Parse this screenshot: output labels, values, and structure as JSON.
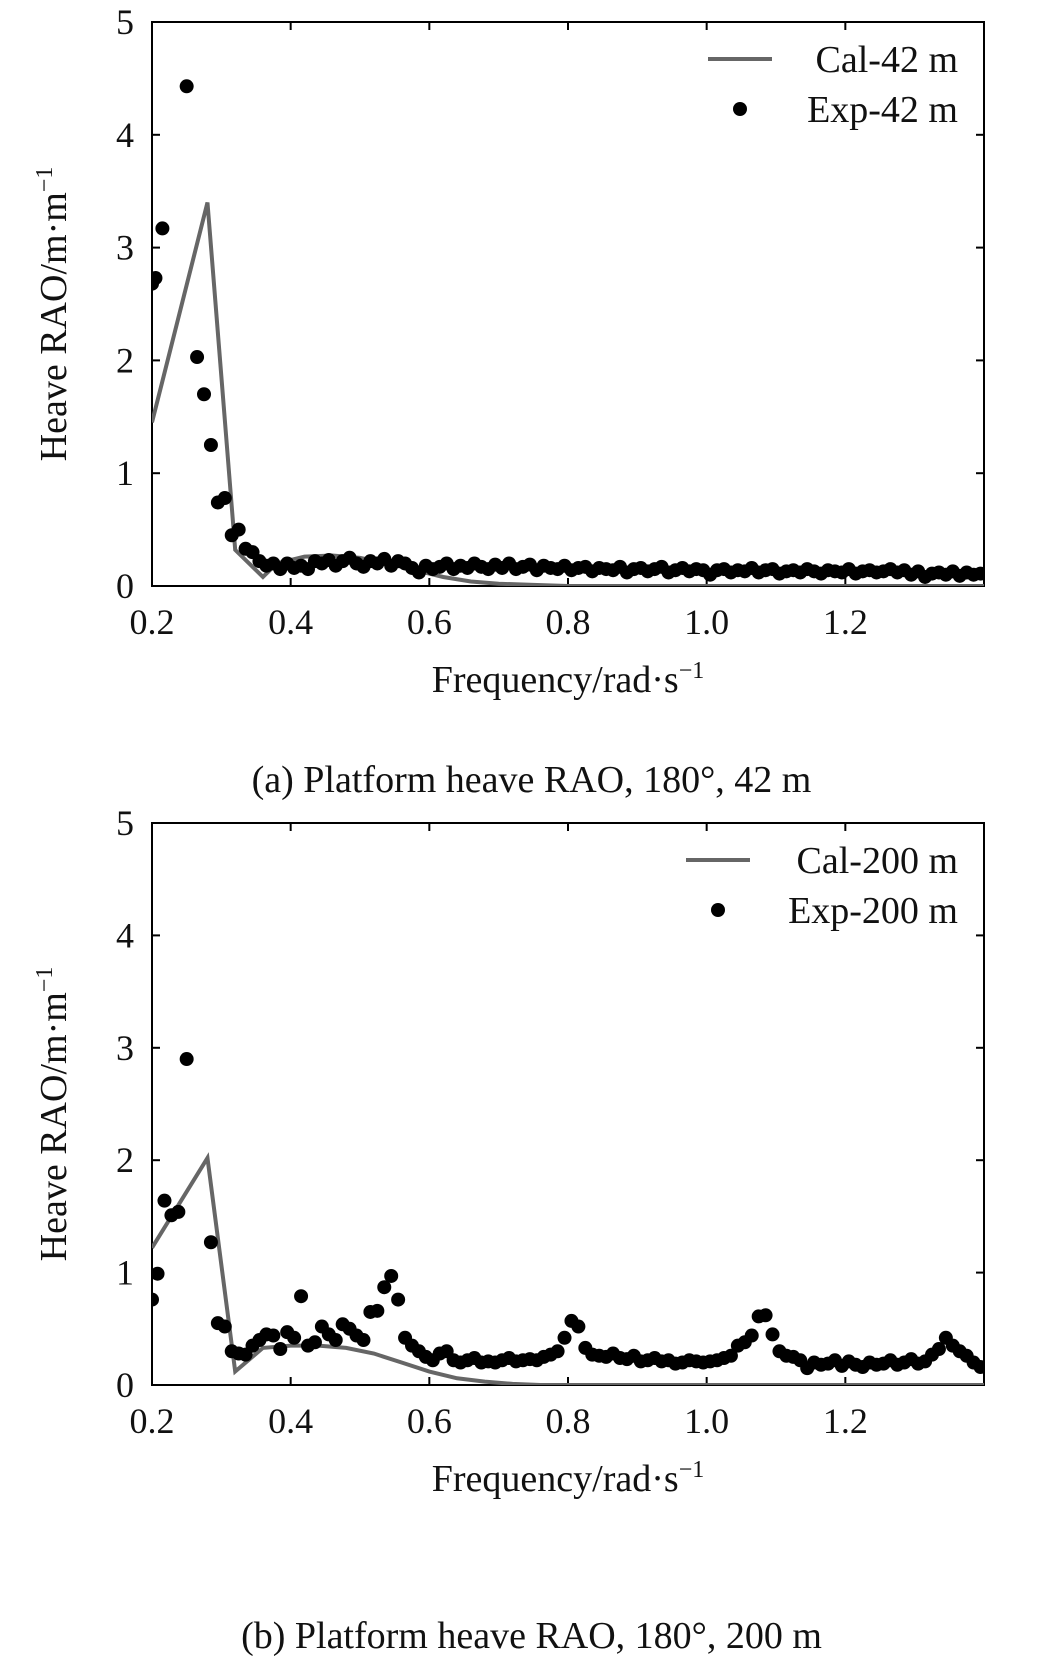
{
  "chart_data": [
    {
      "type": "line+scatter",
      "caption": "(a) Platform heave RAO, 180°, 42 m",
      "xlabel": "Frequency/rad·s",
      "xlabel_sup": "−1",
      "ylabel": "Heave RAO/m·m",
      "ylabel_sup": "−1",
      "xlim": [
        0.2,
        1.4
      ],
      "ylim": [
        0,
        5
      ],
      "xticks": [
        0.2,
        0.4,
        0.6,
        0.8,
        1.0,
        1.2
      ],
      "xtick_labels": [
        "0.2",
        "0.4",
        "0.6",
        "0.8",
        "1.0",
        "1.2"
      ],
      "yticks": [
        0,
        1,
        2,
        3,
        4,
        5
      ],
      "ytick_labels": [
        "0",
        "1",
        "2",
        "3",
        "4",
        "5"
      ],
      "legend_position": "top-right",
      "series": [
        {
          "name": "Cal-42 m",
          "kind": "line",
          "color": "#666666",
          "x": [
            0.2,
            0.28,
            0.32,
            0.36,
            0.38,
            0.42,
            0.46,
            0.5,
            0.54,
            0.58,
            0.62,
            0.66,
            0.7,
            0.75,
            0.8,
            0.9,
            1.0,
            1.2,
            1.4
          ],
          "y": [
            1.45,
            3.4,
            0.32,
            0.08,
            0.2,
            0.26,
            0.27,
            0.25,
            0.2,
            0.14,
            0.08,
            0.04,
            0.02,
            0.01,
            0.0,
            0.0,
            0.0,
            0.0,
            0.0
          ]
        },
        {
          "name": "Exp-42 m",
          "kind": "scatter",
          "color": "#000000",
          "x": [
            0.2,
            0.205,
            0.215,
            0.25,
            0.265,
            0.275,
            0.285,
            0.295,
            0.305,
            0.315,
            0.325,
            0.335,
            0.345,
            0.355,
            0.365,
            0.375,
            0.385,
            0.395,
            0.405,
            0.415,
            0.425,
            0.435,
            0.445,
            0.455,
            0.465,
            0.475,
            0.485,
            0.495,
            0.505,
            0.515,
            0.525,
            0.535,
            0.545,
            0.555,
            0.565,
            0.575,
            0.585,
            0.595,
            0.605,
            0.615,
            0.625,
            0.635,
            0.645,
            0.655,
            0.665,
            0.675,
            0.685,
            0.695,
            0.705,
            0.715,
            0.725,
            0.735,
            0.745,
            0.755,
            0.765,
            0.775,
            0.785,
            0.795,
            0.805,
            0.815,
            0.825,
            0.835,
            0.845,
            0.855,
            0.865,
            0.875,
            0.885,
            0.895,
            0.905,
            0.915,
            0.925,
            0.935,
            0.945,
            0.955,
            0.965,
            0.975,
            0.985,
            0.995,
            1.005,
            1.015,
            1.025,
            1.035,
            1.045,
            1.055,
            1.065,
            1.075,
            1.085,
            1.095,
            1.105,
            1.115,
            1.125,
            1.135,
            1.145,
            1.155,
            1.165,
            1.175,
            1.185,
            1.195,
            1.205,
            1.215,
            1.225,
            1.235,
            1.245,
            1.255,
            1.265,
            1.275,
            1.285,
            1.295,
            1.305,
            1.315,
            1.325,
            1.335,
            1.345,
            1.355,
            1.365,
            1.375,
            1.385,
            1.395
          ],
          "y": [
            2.68,
            2.73,
            3.17,
            4.43,
            2.03,
            1.7,
            1.25,
            0.74,
            0.78,
            0.45,
            0.5,
            0.33,
            0.3,
            0.22,
            0.18,
            0.2,
            0.15,
            0.2,
            0.16,
            0.18,
            0.15,
            0.22,
            0.2,
            0.23,
            0.18,
            0.22,
            0.25,
            0.2,
            0.17,
            0.22,
            0.2,
            0.24,
            0.18,
            0.22,
            0.2,
            0.16,
            0.12,
            0.18,
            0.15,
            0.17,
            0.2,
            0.15,
            0.18,
            0.16,
            0.2,
            0.17,
            0.15,
            0.19,
            0.16,
            0.2,
            0.15,
            0.17,
            0.19,
            0.14,
            0.18,
            0.16,
            0.15,
            0.18,
            0.14,
            0.16,
            0.17,
            0.13,
            0.16,
            0.15,
            0.14,
            0.17,
            0.12,
            0.15,
            0.16,
            0.13,
            0.15,
            0.17,
            0.12,
            0.14,
            0.16,
            0.13,
            0.15,
            0.14,
            0.1,
            0.14,
            0.15,
            0.12,
            0.14,
            0.13,
            0.16,
            0.12,
            0.14,
            0.15,
            0.11,
            0.13,
            0.14,
            0.12,
            0.15,
            0.13,
            0.11,
            0.14,
            0.13,
            0.12,
            0.15,
            0.11,
            0.13,
            0.14,
            0.12,
            0.13,
            0.15,
            0.12,
            0.14,
            0.1,
            0.13,
            0.08,
            0.11,
            0.12,
            0.1,
            0.13,
            0.09,
            0.12,
            0.1,
            0.11
          ]
        }
      ]
    },
    {
      "type": "line+scatter",
      "caption": "(b) Platform heave RAO, 180°, 200 m",
      "xlabel": "Frequency/rad·s",
      "xlabel_sup": "−1",
      "ylabel": "Heave RAO/m·m",
      "ylabel_sup": "−1",
      "xlim": [
        0.2,
        1.4
      ],
      "ylim": [
        0,
        5
      ],
      "xticks": [
        0.2,
        0.4,
        0.6,
        0.8,
        1.0,
        1.2
      ],
      "xtick_labels": [
        "0.2",
        "0.4",
        "0.6",
        "0.8",
        "1.0",
        "1.2"
      ],
      "yticks": [
        0,
        1,
        2,
        3,
        4,
        5
      ],
      "ytick_labels": [
        "0",
        "1",
        "2",
        "3",
        "4",
        "5"
      ],
      "legend_position": "top-right",
      "series": [
        {
          "name": "Cal-200 m",
          "kind": "line",
          "color": "#666666",
          "x": [
            0.2,
            0.28,
            0.32,
            0.36,
            0.4,
            0.44,
            0.48,
            0.52,
            0.56,
            0.6,
            0.64,
            0.68,
            0.72,
            0.76,
            0.8,
            0.9,
            1.0,
            1.2,
            1.4
          ],
          "y": [
            1.22,
            2.02,
            0.12,
            0.33,
            0.35,
            0.35,
            0.33,
            0.28,
            0.2,
            0.12,
            0.06,
            0.03,
            0.01,
            0.0,
            0.0,
            0.0,
            0.0,
            0.0,
            0.0
          ]
        },
        {
          "name": "Exp-200 m",
          "kind": "scatter",
          "color": "#000000",
          "x": [
            0.2,
            0.208,
            0.218,
            0.228,
            0.238,
            0.25,
            0.285,
            0.295,
            0.305,
            0.315,
            0.325,
            0.335,
            0.345,
            0.355,
            0.365,
            0.375,
            0.385,
            0.395,
            0.405,
            0.415,
            0.425,
            0.435,
            0.445,
            0.455,
            0.465,
            0.475,
            0.485,
            0.495,
            0.505,
            0.515,
            0.525,
            0.535,
            0.545,
            0.555,
            0.565,
            0.575,
            0.585,
            0.595,
            0.605,
            0.615,
            0.625,
            0.635,
            0.645,
            0.655,
            0.665,
            0.675,
            0.685,
            0.695,
            0.705,
            0.715,
            0.725,
            0.735,
            0.745,
            0.755,
            0.765,
            0.775,
            0.785,
            0.795,
            0.805,
            0.815,
            0.825,
            0.835,
            0.845,
            0.855,
            0.865,
            0.875,
            0.885,
            0.895,
            0.905,
            0.915,
            0.925,
            0.935,
            0.945,
            0.955,
            0.965,
            0.975,
            0.985,
            0.995,
            1.005,
            1.015,
            1.025,
            1.035,
            1.045,
            1.055,
            1.065,
            1.075,
            1.085,
            1.095,
            1.105,
            1.115,
            1.125,
            1.135,
            1.145,
            1.155,
            1.165,
            1.175,
            1.185,
            1.195,
            1.205,
            1.215,
            1.225,
            1.235,
            1.245,
            1.255,
            1.265,
            1.275,
            1.285,
            1.295,
            1.305,
            1.315,
            1.325,
            1.335,
            1.345,
            1.355,
            1.365,
            1.375,
            1.385,
            1.395
          ],
          "y": [
            0.76,
            0.99,
            1.64,
            1.51,
            1.54,
            2.9,
            1.27,
            0.55,
            0.52,
            0.3,
            0.28,
            0.27,
            0.35,
            0.4,
            0.45,
            0.44,
            0.32,
            0.47,
            0.42,
            0.79,
            0.35,
            0.38,
            0.52,
            0.45,
            0.4,
            0.54,
            0.5,
            0.44,
            0.4,
            0.65,
            0.66,
            0.87,
            0.97,
            0.76,
            0.42,
            0.35,
            0.3,
            0.25,
            0.22,
            0.28,
            0.3,
            0.22,
            0.2,
            0.22,
            0.24,
            0.2,
            0.21,
            0.2,
            0.22,
            0.24,
            0.21,
            0.22,
            0.23,
            0.22,
            0.25,
            0.27,
            0.3,
            0.42,
            0.57,
            0.52,
            0.33,
            0.27,
            0.26,
            0.25,
            0.28,
            0.24,
            0.23,
            0.26,
            0.21,
            0.22,
            0.24,
            0.21,
            0.22,
            0.19,
            0.2,
            0.22,
            0.21,
            0.2,
            0.21,
            0.22,
            0.24,
            0.26,
            0.35,
            0.38,
            0.44,
            0.61,
            0.62,
            0.45,
            0.3,
            0.26,
            0.25,
            0.22,
            0.15,
            0.2,
            0.18,
            0.19,
            0.22,
            0.17,
            0.21,
            0.18,
            0.16,
            0.2,
            0.18,
            0.19,
            0.22,
            0.18,
            0.2,
            0.23,
            0.19,
            0.21,
            0.27,
            0.32,
            0.42,
            0.35,
            0.3,
            0.26,
            0.2,
            0.16
          ]
        }
      ]
    }
  ]
}
